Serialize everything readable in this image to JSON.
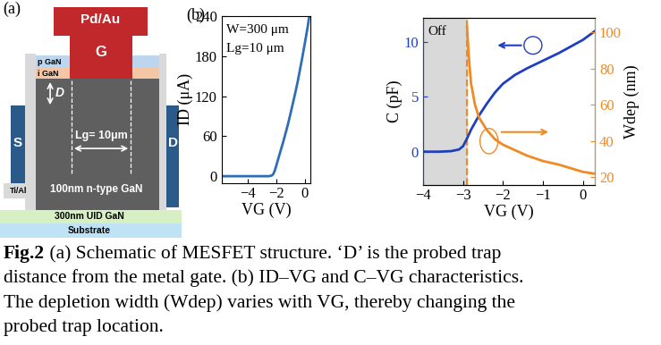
{
  "panel_a": {
    "label": "(a)",
    "gate": "Pd/Au",
    "gate_letter": "G",
    "p_gan": "p GaN",
    "i_gan": "i GaN",
    "channel": "100nm n-type GaN",
    "buffer": "300nm UID GaN",
    "substrate": "Substrate",
    "source": "S",
    "drain": "D",
    "contact_metal": "Ti/Al",
    "trap_distance": "D",
    "gate_length": "Lg= 10μm"
  },
  "panel_b_label": "(b)",
  "chart_data": [
    {
      "type": "line",
      "xlabel": "VG (V)",
      "ylabel": "ID (μA)",
      "annotations": [
        "W=300 μm",
        "Lg=10 μm"
      ],
      "x": [
        -5.8,
        -4.0,
        -3.0,
        -2.5,
        -2.3,
        -2.2,
        -2.1,
        -2.0,
        -1.8,
        -1.5,
        -1.2,
        -1.0,
        -0.7,
        -0.5,
        -0.2,
        0.0,
        0.2,
        0.3
      ],
      "series": [
        {
          "color": "#2f6eb5",
          "values": [
            0,
            0,
            0,
            0,
            1,
            3,
            8,
            15,
            30,
            52,
            76,
            94,
            122,
            142,
            176,
            200,
            225,
            240
          ]
        }
      ],
      "xlim": [
        -5.8,
        0.4
      ],
      "xticks": [
        {
          "value": -4,
          "label": "−4"
        },
        {
          "value": -2,
          "label": "−2"
        },
        0
      ],
      "ylim": [
        -10,
        240
      ],
      "yticks": [
        0,
        60,
        120,
        180,
        240
      ]
    },
    {
      "type": "line",
      "xlabel": "VG (V)",
      "ylabel": "C (pF)",
      "y2label": "Wdep (nm)",
      "annotations": [
        "Off"
      ],
      "off_threshold": -2.9,
      "series": [
        {
          "color": "#1f3fbf",
          "axis": "y",
          "x": [
            -4.0,
            -3.6,
            -3.3,
            -3.1,
            -3.0,
            -2.9,
            -2.8,
            -2.6,
            -2.4,
            -2.2,
            -2.0,
            -1.7,
            -1.4,
            -1.0,
            -0.6,
            -0.3,
            0.0,
            0.3
          ],
          "values": [
            0,
            0,
            0.05,
            0.2,
            0.5,
            1.2,
            2.0,
            3.3,
            4.4,
            5.4,
            6.2,
            7.0,
            7.6,
            8.3,
            9.0,
            9.6,
            10.2,
            11.0
          ]
        },
        {
          "color": "#f08a24",
          "axis": "y2",
          "x": [
            -2.9,
            -2.85,
            -2.8,
            -2.7,
            -2.6,
            -2.4,
            -2.2,
            -2.0,
            -1.7,
            -1.4,
            -1.0,
            -0.6,
            -0.3,
            0.0,
            0.3
          ],
          "values": [
            103,
            85,
            72,
            60,
            53,
            46,
            41,
            38,
            35,
            32,
            29,
            27,
            25,
            23,
            22
          ]
        }
      ],
      "xlim": [
        -4,
        0.3
      ],
      "xticks": [
        {
          "value": -4,
          "label": "−4"
        },
        {
          "value": -3,
          "label": "−3"
        },
        {
          "value": -2,
          "label": "−2"
        },
        {
          "value": -1,
          "label": "−1"
        },
        0
      ],
      "ylim": [
        -3,
        12.2
      ],
      "yticks": [
        0,
        5,
        10
      ],
      "y2lim": [
        16,
        108
      ],
      "y2ticks": [
        20,
        40,
        60,
        80,
        100
      ]
    }
  ],
  "caption": {
    "label": "Fig.2",
    "lines": [
      " (a) Schematic of MESFET structure. ‘D’ is the probed trap",
      "distance from the metal gate. (b) ID–VG and C–VG characteristics.",
      "The depletion width (Wdep) varies with VG, thereby changing the",
      "probed trap location."
    ]
  }
}
